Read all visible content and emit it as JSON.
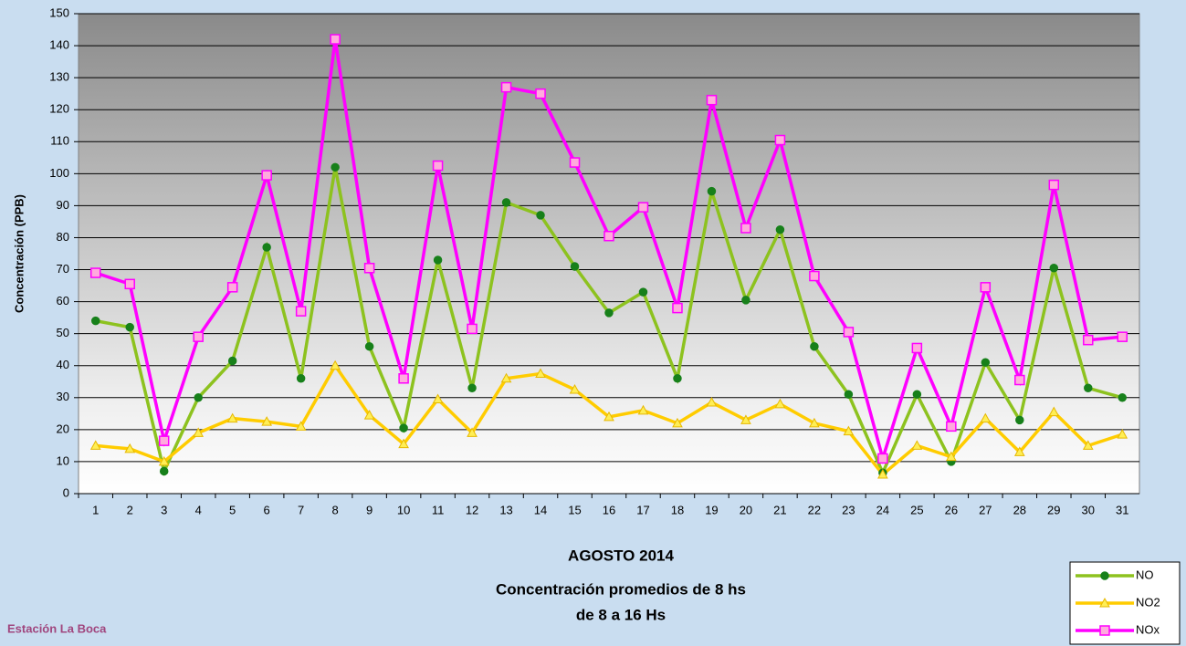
{
  "chart_data": {
    "type": "line",
    "title": [
      "AGOSTO 2014",
      "Concentración promedios de 8 hs",
      "de 8 a 16 Hs"
    ],
    "annotation": "Estación La Boca",
    "y_label": "Concentración (PPB)",
    "categories": [
      "1",
      "2",
      "3",
      "4",
      "5",
      "6",
      "7",
      "8",
      "9",
      "10",
      "11",
      "12",
      "13",
      "14",
      "15",
      "16",
      "17",
      "18",
      "19",
      "20",
      "21",
      "22",
      "23",
      "24",
      "25",
      "26",
      "27",
      "28",
      "29",
      "30",
      "31"
    ],
    "series": [
      {
        "name": "NO",
        "color": "#8dc21f",
        "marker": "circle",
        "marker_color": "#17801a",
        "values": [
          54,
          52,
          7,
          30,
          41.5,
          77,
          36,
          102,
          46,
          20.5,
          73,
          33,
          91,
          87,
          71,
          56.5,
          63,
          36,
          94.5,
          60.5,
          82.5,
          46,
          31,
          6.5,
          31,
          10,
          41,
          23,
          70.5,
          33,
          30
        ]
      },
      {
        "name": "NO2",
        "color": "#ffcc00",
        "marker": "triangle",
        "marker_color": "#ffee55",
        "values": [
          15,
          14,
          10,
          19,
          23.5,
          22.5,
          21,
          40,
          24.5,
          15.5,
          29.5,
          19,
          36,
          37.5,
          32.5,
          24,
          26,
          22,
          28.5,
          23,
          28,
          22,
          19.5,
          6,
          15,
          11.5,
          23.5,
          13,
          25.5,
          15,
          18.5
        ]
      },
      {
        "name": "NOx",
        "color": "#ff00ff",
        "marker": "square",
        "marker_color": "#ffaadd",
        "values": [
          69,
          65.5,
          16.5,
          49,
          64.5,
          99.5,
          57,
          142,
          70.5,
          36,
          102.5,
          51.5,
          127,
          125,
          103.5,
          80.5,
          89.5,
          58,
          123,
          83,
          110.5,
          68,
          50.5,
          11,
          45.5,
          21,
          64.5,
          35.5,
          96.5,
          48,
          49
        ]
      }
    ],
    "ylim": [
      0,
      150
    ],
    "yticks": [
      0,
      10,
      20,
      30,
      40,
      50,
      60,
      70,
      80,
      90,
      100,
      110,
      120,
      130,
      140,
      150
    ],
    "grid": true,
    "legend": "bottom-right"
  }
}
